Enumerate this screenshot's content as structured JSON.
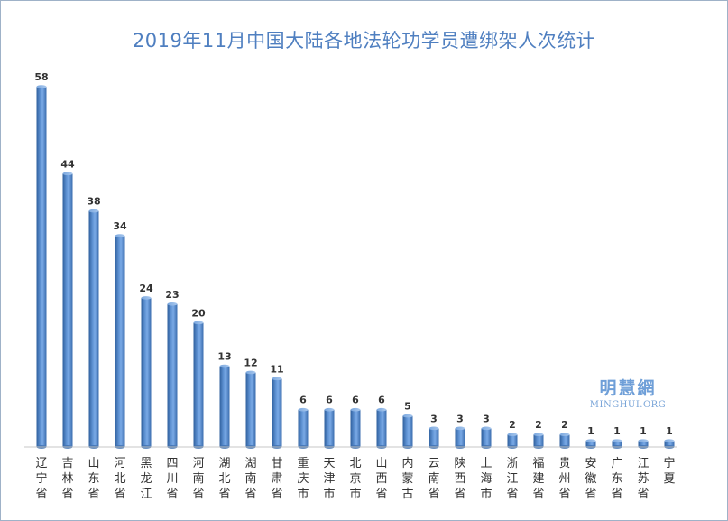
{
  "chart_data": {
    "type": "bar",
    "title": "2019年11月中国大陆各地法轮功学员遭绑架人次统计",
    "categories": [
      "辽宁省",
      "吉林省",
      "山东省",
      "河北省",
      "黑龙江",
      "四川省",
      "河南省",
      "湖北省",
      "湖南省",
      "甘肃省",
      "重庆市",
      "天津市",
      "北京市",
      "山西省",
      "内蒙古",
      "云南省",
      "陕西省",
      "上海市",
      "浙江省",
      "福建省",
      "贵州省",
      "安徽省",
      "广东省",
      "江苏省",
      "宁夏"
    ],
    "values": [
      58,
      44,
      38,
      34,
      24,
      23,
      20,
      13,
      12,
      11,
      6,
      6,
      6,
      6,
      5,
      3,
      3,
      3,
      2,
      2,
      2,
      1,
      1,
      1,
      1
    ],
    "xlabel": "",
    "ylabel": "",
    "ylim": [
      0,
      58
    ],
    "grid": false,
    "data_labels": true,
    "bar_color": "#4f81bd"
  },
  "watermark": {
    "main": "明慧網",
    "sub": "MINGHUI.ORG"
  }
}
